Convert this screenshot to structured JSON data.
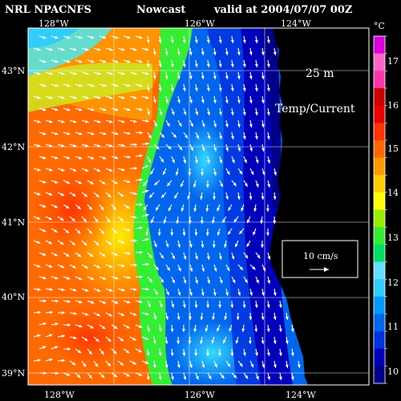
{
  "header": {
    "source": "NRL NPACNFS",
    "product": "Nowcast",
    "valid_label": "valid at 2004/07/07 00Z"
  },
  "annotations": {
    "depth": "25 m",
    "variable": "Temp/Current",
    "vector_scale_label": "10 cm/s"
  },
  "axes": {
    "top_lon_labels": [
      "128°W",
      "126°W",
      "124°W"
    ],
    "bottom_lon_labels": [
      "128°W",
      "126°W",
      "124°W"
    ],
    "lat_labels": [
      "43°N",
      "42°N",
      "41°N",
      "40°N",
      "39°N"
    ]
  },
  "colorbar": {
    "unit": "°C",
    "tick_labels": [
      "17",
      "16",
      "15",
      "14",
      "13",
      "12",
      "11",
      "10"
    ],
    "colors": [
      "#000088",
      "#0000bb",
      "#0033dd",
      "#0066ee",
      "#0099ff",
      "#33ccff",
      "#66ddff",
      "#00dd66",
      "#33ee33",
      "#99ee00",
      "#ffff00",
      "#ffcc00",
      "#ff9900",
      "#ff6600",
      "#ff3300",
      "#ee0000",
      "#cc0000",
      "#ff33aa",
      "#ff66cc",
      "#dd00dd"
    ]
  },
  "colors": {
    "land": "#000000",
    "vectors": "#ffffff",
    "grid": "#ffffff"
  }
}
